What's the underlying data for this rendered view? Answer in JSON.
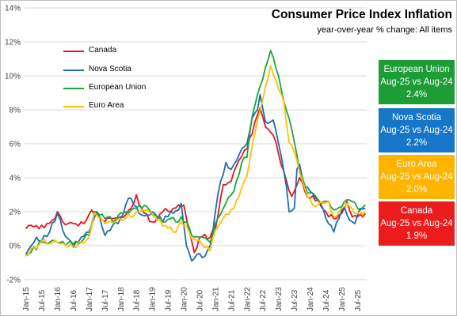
{
  "chart_data": {
    "type": "line",
    "title": "Consumer Price Index Inflation",
    "subtitle": "year-over-year  % change: All items",
    "xlabel": "",
    "ylabel": "",
    "ylim": [
      -2,
      14
    ],
    "yticks": [
      "-2%",
      "0%",
      "2%",
      "4%",
      "6%",
      "8%",
      "10%",
      "12%",
      "14%"
    ],
    "xticks": [
      "Jan-15",
      "Jul-15",
      "Jan-16",
      "Jul-16",
      "Jan-17",
      "Jul-17",
      "Jan-18",
      "Jul-18",
      "Jan-19",
      "Jul-19",
      "Jan-20",
      "Jul-20",
      "Jan-21",
      "Jul-21",
      "Jan-22",
      "Jul-22",
      "Jan-23",
      "Jul-23",
      "Jan-24",
      "Jul-24",
      "Jan-25",
      "Jul-25"
    ],
    "grid": true,
    "legend_position": "top-left",
    "series": [
      {
        "name": "Canada",
        "color": "#e8141c",
        "anchors": [
          [
            0,
            1.0
          ],
          [
            2,
            1.2
          ],
          [
            5,
            1.0
          ],
          [
            8,
            1.3
          ],
          [
            10,
            1.5
          ],
          [
            12,
            2.0
          ],
          [
            14,
            1.4
          ],
          [
            18,
            1.3
          ],
          [
            22,
            1.3
          ],
          [
            25,
            2.1
          ],
          [
            30,
            1.4
          ],
          [
            33,
            1.6
          ],
          [
            36,
            1.7
          ],
          [
            40,
            2.2
          ],
          [
            42,
            3.0
          ],
          [
            44,
            2.2
          ],
          [
            48,
            1.4
          ],
          [
            52,
            2.0
          ],
          [
            56,
            2.2
          ],
          [
            60,
            2.4
          ],
          [
            62,
            0.9
          ],
          [
            64,
            -0.4
          ],
          [
            66,
            0.5
          ],
          [
            70,
            0.5
          ],
          [
            72,
            1.0
          ],
          [
            75,
            3.6
          ],
          [
            78,
            3.8
          ],
          [
            80,
            4.7
          ],
          [
            84,
            5.7
          ],
          [
            88,
            7.7
          ],
          [
            89,
            8.1
          ],
          [
            91,
            7.0
          ],
          [
            94,
            6.5
          ],
          [
            98,
            4.4
          ],
          [
            101,
            2.9
          ],
          [
            102,
            3.2
          ],
          [
            104,
            4.0
          ],
          [
            106,
            3.2
          ],
          [
            108,
            2.8
          ],
          [
            111,
            2.7
          ],
          [
            114,
            2.0
          ],
          [
            117,
            1.6
          ],
          [
            120,
            1.9
          ],
          [
            122,
            2.6
          ],
          [
            124,
            1.7
          ],
          [
            126,
            1.7
          ],
          [
            128,
            1.7
          ],
          [
            129,
            1.9
          ]
        ]
      },
      {
        "name": "Nova Scotia",
        "color": "#1f6cb0",
        "anchors": [
          [
            0,
            -0.5
          ],
          [
            2,
            0.0
          ],
          [
            4,
            0.5
          ],
          [
            6,
            0.3
          ],
          [
            9,
            0.8
          ],
          [
            12,
            1.9
          ],
          [
            14,
            0.9
          ],
          [
            18,
            -0.1
          ],
          [
            21,
            0.5
          ],
          [
            24,
            0.8
          ],
          [
            27,
            2.0
          ],
          [
            30,
            0.6
          ],
          [
            33,
            1.2
          ],
          [
            36,
            1.6
          ],
          [
            39,
            2.8
          ],
          [
            41,
            2.4
          ],
          [
            43,
            1.9
          ],
          [
            46,
            1.8
          ],
          [
            49,
            1.9
          ],
          [
            52,
            1.4
          ],
          [
            55,
            2.0
          ],
          [
            58,
            2.1
          ],
          [
            59,
            2.5
          ],
          [
            61,
            0.0
          ],
          [
            63,
            -0.9
          ],
          [
            65,
            -0.5
          ],
          [
            67,
            -0.7
          ],
          [
            70,
            0.0
          ],
          [
            71,
            0.8
          ],
          [
            72,
            2.0
          ],
          [
            74,
            3.8
          ],
          [
            76,
            4.9
          ],
          [
            78,
            4.5
          ],
          [
            80,
            5.0
          ],
          [
            82,
            5.7
          ],
          [
            84,
            6.0
          ],
          [
            86,
            7.5
          ],
          [
            88,
            8.0
          ],
          [
            89,
            8.9
          ],
          [
            91,
            7.3
          ],
          [
            94,
            7.4
          ],
          [
            96,
            6.0
          ],
          [
            97,
            5.3
          ],
          [
            99,
            3.5
          ],
          [
            100,
            2.0
          ],
          [
            102,
            2.2
          ],
          [
            103,
            4.5
          ],
          [
            104,
            4.8
          ],
          [
            106,
            3.5
          ],
          [
            108,
            3.2
          ],
          [
            110,
            2.8
          ],
          [
            112,
            2.5
          ],
          [
            114,
            1.6
          ],
          [
            115,
            1.3
          ],
          [
            117,
            0.8
          ],
          [
            119,
            1.6
          ],
          [
            121,
            2.3
          ],
          [
            123,
            1.5
          ],
          [
            125,
            1.3
          ],
          [
            127,
            2.2
          ],
          [
            129,
            2.2
          ]
        ]
      },
      {
        "name": "European Union",
        "color": "#19a53d",
        "anchors": [
          [
            0,
            -0.6
          ],
          [
            6,
            0.2
          ],
          [
            12,
            0.2
          ],
          [
            18,
            0.1
          ],
          [
            24,
            0.6
          ],
          [
            26,
            2.0
          ],
          [
            30,
            1.6
          ],
          [
            34,
            1.5
          ],
          [
            37,
            1.9
          ],
          [
            42,
            2.2
          ],
          [
            46,
            2.3
          ],
          [
            50,
            1.7
          ],
          [
            53,
            1.4
          ],
          [
            55,
            1.6
          ],
          [
            57,
            1.4
          ],
          [
            59,
            1.7
          ],
          [
            61,
            1.4
          ],
          [
            63,
            0.6
          ],
          [
            66,
            0.5
          ],
          [
            70,
            0.2
          ],
          [
            72,
            1.3
          ],
          [
            75,
            2.2
          ],
          [
            79,
            3.2
          ],
          [
            82,
            4.9
          ],
          [
            84,
            5.2
          ],
          [
            86,
            7.6
          ],
          [
            88,
            8.9
          ],
          [
            90,
            9.8
          ],
          [
            93,
            11.5
          ],
          [
            94,
            11.1
          ],
          [
            96,
            10.0
          ],
          [
            98,
            8.5
          ],
          [
            100,
            7.5
          ],
          [
            102,
            6.1
          ],
          [
            104,
            4.3
          ],
          [
            107,
            3.1
          ],
          [
            109,
            3.1
          ],
          [
            111,
            2.7
          ],
          [
            113,
            2.6
          ],
          [
            115,
            2.6
          ],
          [
            117,
            2.1
          ],
          [
            120,
            2.3
          ],
          [
            122,
            2.7
          ],
          [
            124,
            2.6
          ],
          [
            126,
            2.2
          ],
          [
            129,
            2.4
          ]
        ]
      },
      {
        "name": "Euro Area",
        "color": "#ffc000",
        "anchors": [
          [
            0,
            -0.6
          ],
          [
            6,
            0.3
          ],
          [
            12,
            0.2
          ],
          [
            18,
            -0.1
          ],
          [
            24,
            0.5
          ],
          [
            26,
            1.9
          ],
          [
            30,
            1.3
          ],
          [
            34,
            1.4
          ],
          [
            37,
            1.5
          ],
          [
            42,
            2.0
          ],
          [
            46,
            2.1
          ],
          [
            50,
            1.5
          ],
          [
            53,
            1.2
          ],
          [
            55,
            1.1
          ],
          [
            57,
            0.8
          ],
          [
            59,
            1.4
          ],
          [
            61,
            1.2
          ],
          [
            63,
            0.4
          ],
          [
            66,
            0.3
          ],
          [
            70,
            -0.3
          ],
          [
            72,
            0.9
          ],
          [
            75,
            1.6
          ],
          [
            79,
            2.2
          ],
          [
            82,
            3.4
          ],
          [
            84,
            4.1
          ],
          [
            86,
            5.9
          ],
          [
            88,
            7.4
          ],
          [
            90,
            8.6
          ],
          [
            93,
            10.6
          ],
          [
            94,
            10.1
          ],
          [
            96,
            9.2
          ],
          [
            98,
            8.5
          ],
          [
            100,
            6.1
          ],
          [
            102,
            5.5
          ],
          [
            104,
            4.3
          ],
          [
            107,
            2.9
          ],
          [
            109,
            2.4
          ],
          [
            111,
            2.4
          ],
          [
            113,
            2.5
          ],
          [
            115,
            2.6
          ],
          [
            117,
            1.7
          ],
          [
            120,
            2.2
          ],
          [
            122,
            2.5
          ],
          [
            124,
            2.2
          ],
          [
            126,
            1.9
          ],
          [
            129,
            2.0
          ]
        ]
      }
    ]
  },
  "info_boxes": [
    {
      "name": "European Union",
      "period": "Aug-25 vs Aug-24",
      "value": "2.4%",
      "color": "#1d9d35"
    },
    {
      "name": "Nova Scotia",
      "period": "Aug-25 vs Aug-24",
      "value": "2.2%",
      "color": "#1677c8"
    },
    {
      "name": "Euro Area",
      "period": "Aug-25 vs Aug-24",
      "value": "2.0%",
      "color": "#ffb400"
    },
    {
      "name": "Canada",
      "period": "Aug-25 vs Aug-24",
      "value": "1.9%",
      "color": "#ea1c1c"
    }
  ]
}
